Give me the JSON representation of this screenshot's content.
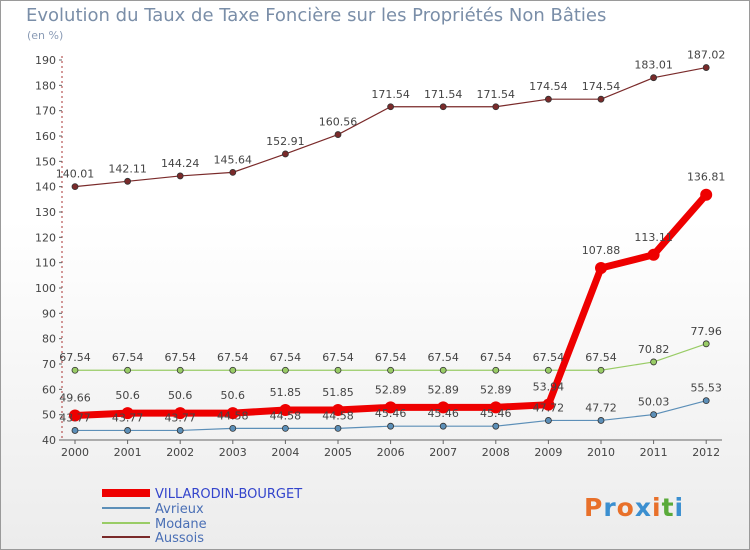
{
  "header": {
    "title": "Evolution du Taux de Taxe Foncière sur les Propriétés Non Bâties",
    "unit": "(en %)"
  },
  "logo": {
    "text": "Proxiti",
    "colors": [
      "#e8702a",
      "#3b8fd0",
      "#e8702a",
      "#3b8fd0",
      "#e8702a",
      "#5aaa3a",
      "#3b8fd0"
    ]
  },
  "chart_data": {
    "type": "line",
    "title": "Evolution du Taux de Taxe Foncière sur les Propriétés Non Bâties",
    "ylabel": "(en %)",
    "xlabel": "",
    "ylim": [
      40,
      190
    ],
    "yticks": [
      40,
      50,
      60,
      70,
      80,
      90,
      100,
      110,
      120,
      130,
      140,
      150,
      160,
      170,
      180,
      190
    ],
    "x": [
      "2000",
      "2001",
      "2002",
      "2003",
      "2004",
      "2005",
      "2006",
      "2007",
      "2008",
      "2009",
      "2010",
      "2011",
      "2012"
    ],
    "grid": false,
    "legend_position": "bottom-left",
    "series": [
      {
        "name": "VILLARODIN-BOURGET",
        "color": "#ee0000",
        "values": [
          49.66,
          50.6,
          50.6,
          50.6,
          51.85,
          51.85,
          52.89,
          52.89,
          52.89,
          53.94,
          107.88,
          113.11,
          136.81
        ],
        "labels": [
          "49.66",
          "50.6",
          "50.6",
          "50.6",
          "51.85",
          "51.85",
          "52.89",
          "52.89",
          "52.89",
          "53.94",
          "107.88",
          "113.11",
          "136.81"
        ]
      },
      {
        "name": "Avrieux",
        "color": "#5c8fb8",
        "values": [
          43.77,
          43.77,
          43.77,
          44.58,
          44.58,
          44.58,
          45.46,
          45.46,
          45.46,
          47.72,
          47.72,
          50.03,
          55.53
        ],
        "labels": [
          "43.77",
          "43.77",
          "43.77",
          "44.58",
          "44.58",
          "44.58",
          "45.46",
          "45.46",
          "45.46",
          "47.72",
          "47.72",
          "50.03",
          "55.53"
        ]
      },
      {
        "name": "Modane",
        "color": "#99cc66",
        "values": [
          67.54,
          67.54,
          67.54,
          67.54,
          67.54,
          67.54,
          67.54,
          67.54,
          67.54,
          67.54,
          67.54,
          70.82,
          77.96
        ],
        "labels": [
          "67.54",
          "67.54",
          "67.54",
          "67.54",
          "67.54",
          "67.54",
          "67.54",
          "67.54",
          "67.54",
          "67.54",
          "67.54",
          "70.82",
          "77.96"
        ]
      },
      {
        "name": "Aussois",
        "color": "#7a2a2a",
        "values": [
          140.01,
          142.11,
          144.24,
          145.64,
          152.91,
          160.56,
          171.54,
          171.54,
          171.54,
          174.54,
          174.54,
          183.01,
          187.02
        ],
        "labels": [
          "140.01",
          "142.11",
          "144.24",
          "145.64",
          "152.91",
          "160.56",
          "171.54",
          "171.54",
          "171.54",
          "174.54",
          "174.54",
          "183.01",
          "187.02"
        ]
      }
    ]
  }
}
